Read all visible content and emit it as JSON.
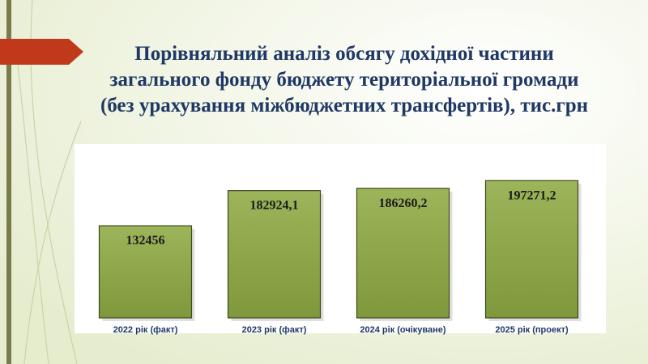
{
  "chart_data": {
    "type": "bar",
    "title": [
      "Порівняльний аналіз обсягу дохідної частини",
      "загального фонду бюджету територіальної громади",
      "(без урахування міжбюджетних трансфертів), тис.грн"
    ],
    "categories": [
      "2022 рік (факт)",
      "2023 рік (факт)",
      "2024 рік (очікуване)",
      "2025 рік (проект)"
    ],
    "values": [
      132456,
      182924.1,
      186260.2,
      197271.2
    ],
    "value_labels": [
      "132456",
      "182924,1",
      "186260,2",
      "197271,2"
    ],
    "color": "#8fa84a",
    "ylim": [
      0,
      250000
    ]
  }
}
